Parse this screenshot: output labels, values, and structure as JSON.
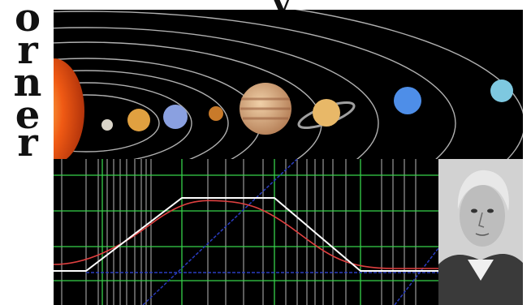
{
  "side_letters": [
    "o",
    "r",
    "n",
    "e",
    "r"
  ],
  "top_letter": "y",
  "colors": {
    "sun": "#f05a14",
    "orbit": "#cfcfcf",
    "graph_grid": "#36d24a",
    "graph_vertical": "#d8d8d8",
    "red_curve": "#e04040",
    "white_curve": "#ffffff",
    "blue_line": "#2a3cbf"
  },
  "planets": [
    {
      "name": "mercury",
      "color": "#d9d4c8"
    },
    {
      "name": "venus",
      "color": "#e0a040"
    },
    {
      "name": "earth",
      "color": "#8aa0e0"
    },
    {
      "name": "mars",
      "color": "#c87a2a"
    },
    {
      "name": "jupiter",
      "color": "#d2a878"
    },
    {
      "name": "saturn",
      "color": "#e8b868"
    },
    {
      "name": "uranus",
      "color": "#4e8ee8"
    },
    {
      "name": "neptune",
      "color": "#7ec8e0"
    }
  ]
}
